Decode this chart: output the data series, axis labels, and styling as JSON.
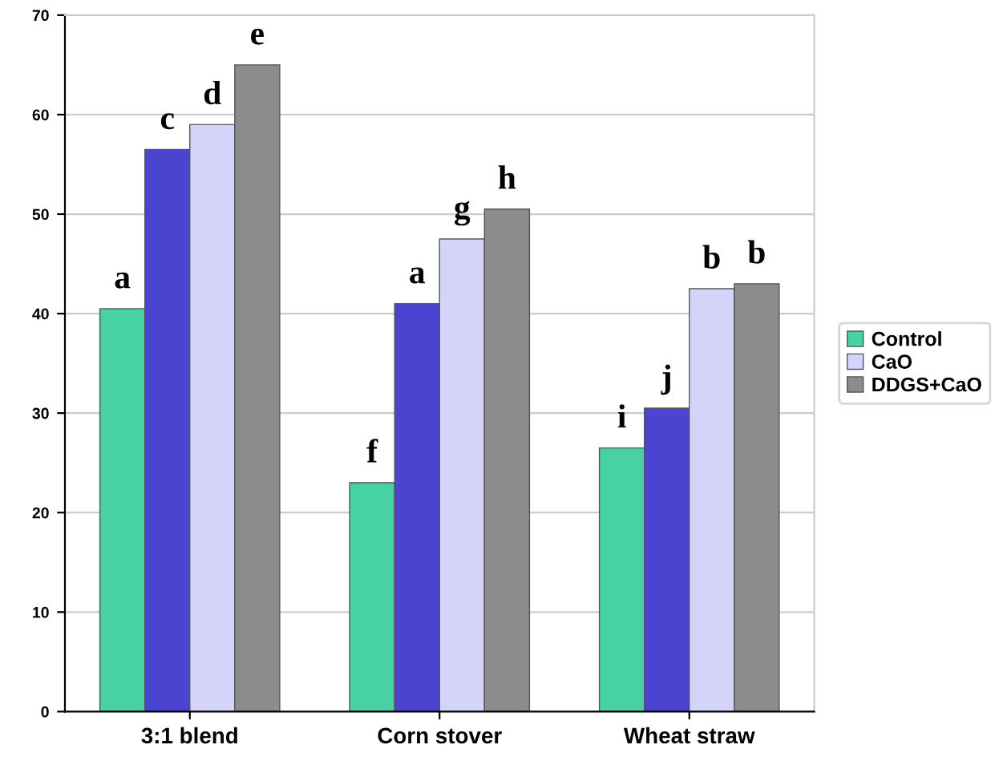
{
  "chart_data": {
    "type": "bar",
    "categories": [
      "3:1 blend",
      "Corn stover",
      "Wheat straw"
    ],
    "series": [
      {
        "name": "Control",
        "color": "#48d1a4",
        "values": [
          40.5,
          23,
          26.5
        ]
      },
      {
        "color": "#4b44d0",
        "values": [
          56.5,
          41,
          30.5
        ]
      },
      {
        "name": "CaO",
        "color": "#d4d4fa",
        "values": [
          59,
          47.5,
          42.5
        ]
      },
      {
        "name": "DDGS+CaO",
        "color": "#8c8c8c",
        "values": [
          65,
          50.5,
          43
        ]
      }
    ],
    "ylim": [
      0,
      70
    ],
    "yticks": [
      0,
      10,
      20,
      30,
      40,
      50,
      60,
      70
    ],
    "grid": "y",
    "legend": "right",
    "annotations": [
      "a",
      "c",
      "d",
      "e",
      "f",
      "a",
      "g",
      "h",
      "i",
      "j",
      "b",
      "b"
    ]
  }
}
